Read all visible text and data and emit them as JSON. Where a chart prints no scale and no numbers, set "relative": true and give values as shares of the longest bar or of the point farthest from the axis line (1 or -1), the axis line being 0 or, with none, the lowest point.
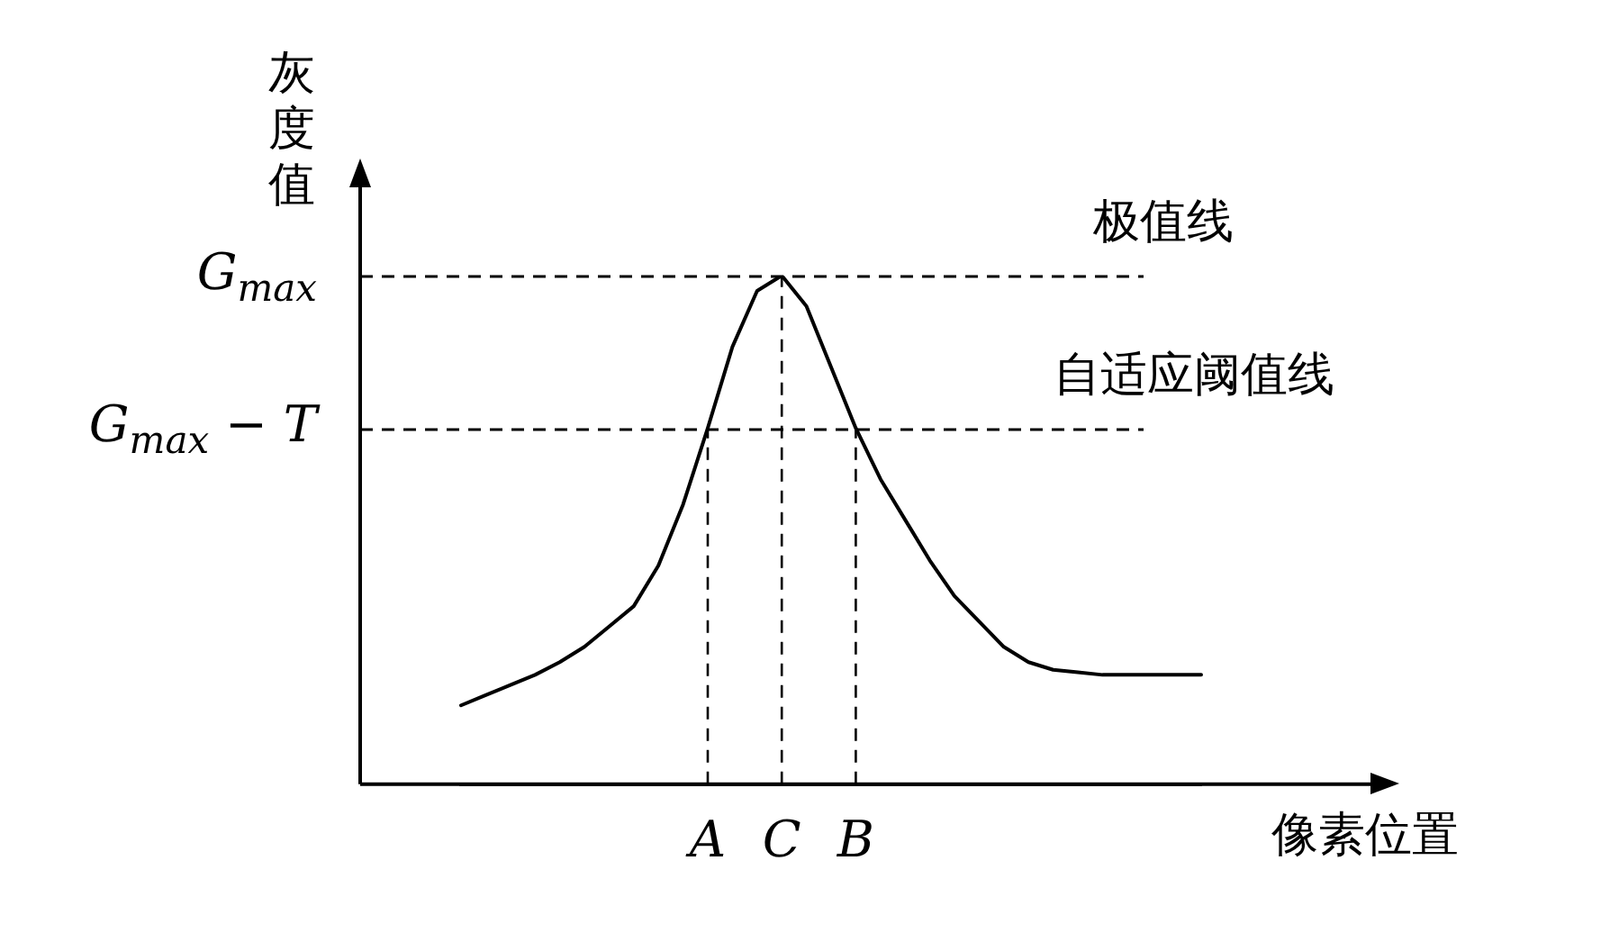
{
  "chart_data": {
    "type": "line",
    "xlabel": "像素位置",
    "ylabel": "灰度值",
    "relative": true,
    "categories": [
      null,
      null,
      null,
      null,
      null,
      null,
      null,
      null,
      null,
      null,
      "A",
      null,
      null,
      "C",
      null,
      null,
      "B",
      null,
      null,
      null,
      null,
      null,
      null,
      null,
      null,
      null,
      null,
      null,
      null,
      null,
      null
    ],
    "series": [
      {
        "color": "#000000",
        "values": [
          0.155,
          0.175,
          0.195,
          0.215,
          0.24,
          0.27,
          0.31,
          0.35,
          0.43,
          0.55,
          0.7,
          0.86,
          0.97,
          1.0,
          0.94,
          0.82,
          0.7,
          0.6,
          0.52,
          0.44,
          0.37,
          0.32,
          0.27,
          0.24,
          0.225,
          0.22,
          0.215,
          0.215,
          0.215,
          0.215,
          0.215
        ]
      }
    ],
    "annotations": [
      "G$_{max}$",
      "G$_{max}$ − T"
    ],
    "ref_lines": [
      {
        "axis": "y",
        "value": 1,
        "label": "极值线",
        "line_style": "dashed"
      },
      {
        "axis": "y",
        "value": 0.7,
        "label": "自适应阈值线",
        "line_style": "dashed"
      },
      {
        "axis": "x",
        "value": "A",
        "line_style": "dashed"
      },
      {
        "axis": "x",
        "value": "C",
        "line_style": "dashed"
      },
      {
        "axis": "x",
        "value": "B",
        "line_style": "dashed"
      }
    ],
    "marker": "none",
    "line_style": "solid",
    "legend": false
  }
}
